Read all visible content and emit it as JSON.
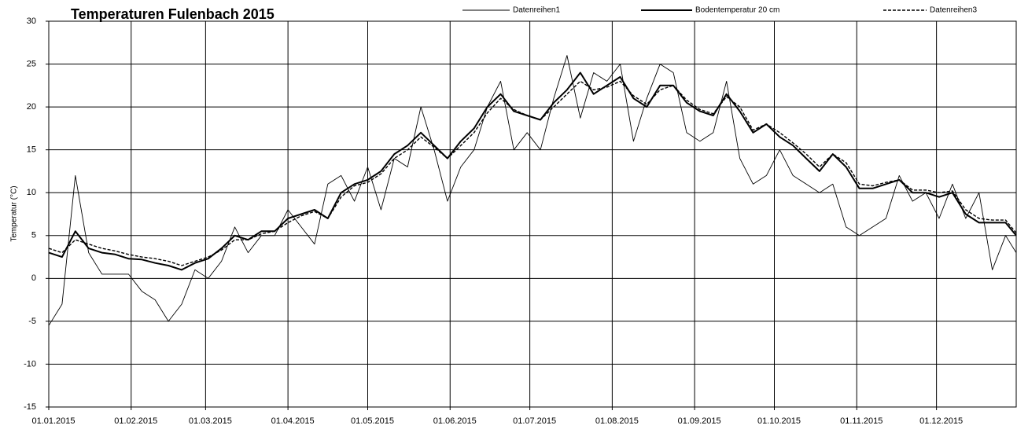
{
  "chart_data": {
    "type": "line",
    "title": "Temperaturen Fulenbach  2015",
    "y_label": "Temperatur (°C)",
    "x": [
      "2015-01-01",
      "2015-01-06",
      "2015-01-11",
      "2015-01-16",
      "2015-01-21",
      "2015-01-26",
      "2015-01-31",
      "2015-02-05",
      "2015-02-10",
      "2015-02-15",
      "2015-02-20",
      "2015-02-25",
      "2015-03-02",
      "2015-03-07",
      "2015-03-12",
      "2015-03-17",
      "2015-03-22",
      "2015-03-27",
      "2015-04-01",
      "2015-04-06",
      "2015-04-11",
      "2015-04-16",
      "2015-04-21",
      "2015-04-26",
      "2015-05-01",
      "2015-05-06",
      "2015-05-11",
      "2015-05-16",
      "2015-05-21",
      "2015-05-26",
      "2015-05-31",
      "2015-06-05",
      "2015-06-10",
      "2015-06-15",
      "2015-06-20",
      "2015-06-25",
      "2015-06-30",
      "2015-07-05",
      "2015-07-10",
      "2015-07-15",
      "2015-07-20",
      "2015-07-25",
      "2015-07-30",
      "2015-08-04",
      "2015-08-09",
      "2015-08-14",
      "2015-08-19",
      "2015-08-24",
      "2015-08-29",
      "2015-09-03",
      "2015-09-08",
      "2015-09-13",
      "2015-09-18",
      "2015-09-23",
      "2015-09-28",
      "2015-10-03",
      "2015-10-08",
      "2015-10-13",
      "2015-10-18",
      "2015-10-23",
      "2015-10-28",
      "2015-11-02",
      "2015-11-07",
      "2015-11-12",
      "2015-11-17",
      "2015-11-22",
      "2015-11-27",
      "2015-12-02",
      "2015-12-07",
      "2015-12-12",
      "2015-12-17",
      "2015-12-22",
      "2015-12-27",
      "2015-12-31"
    ],
    "series": [
      {
        "name": "Datenreihen1",
        "color": "#000000",
        "line_width": 0.9,
        "line_style": "solid",
        "values": [
          -5.5,
          -3,
          12,
          3,
          0.5,
          0.5,
          0.5,
          -1.5,
          -2.5,
          -5,
          -3,
          1,
          0,
          2,
          6,
          3,
          5,
          5,
          8,
          6,
          4,
          11,
          12,
          9,
          13,
          8,
          14,
          13,
          20,
          15,
          9,
          13,
          15,
          20,
          23,
          15,
          17,
          15,
          21,
          26,
          18.7,
          24,
          23,
          25,
          16,
          21,
          25,
          24,
          17,
          16,
          17,
          23,
          14,
          11,
          12,
          15,
          12,
          11,
          10,
          11,
          6,
          5,
          6,
          7,
          12,
          9,
          10,
          7,
          11,
          7,
          10,
          1,
          5,
          3
        ]
      },
      {
        "name": "Bodentemperatur 20 cm",
        "color": "#000000",
        "line_width": 2,
        "line_style": "solid",
        "values": [
          3,
          2.5,
          5.5,
          3.5,
          3,
          2.8,
          2.3,
          2.2,
          1.8,
          1.5,
          1,
          1.8,
          2.3,
          3.5,
          5,
          4.5,
          5.5,
          5.5,
          7,
          7.5,
          8,
          7,
          10,
          11,
          11.5,
          12.5,
          14.5,
          15.5,
          17,
          15.5,
          14,
          16,
          17.5,
          20,
          21.5,
          19.5,
          19,
          18.5,
          20.5,
          22,
          24,
          21.5,
          22.5,
          23.5,
          21,
          20,
          22.5,
          22.5,
          20.5,
          19.5,
          19,
          21.5,
          19.5,
          17,
          18,
          16.5,
          15.5,
          14,
          12.5,
          14.5,
          13,
          10.5,
          10.5,
          11,
          11.5,
          10,
          10,
          9.5,
          10,
          7.5,
          6.5,
          6.5,
          6.5,
          5
        ]
      },
      {
        "name": "Datenreihen3",
        "color": "#000000",
        "line_width": 1.4,
        "line_style": "dashed",
        "values": [
          3.5,
          3,
          4.5,
          4,
          3.5,
          3.2,
          2.8,
          2.5,
          2.3,
          2,
          1.5,
          2,
          2.5,
          3.3,
          4.5,
          4.5,
          5.2,
          5.5,
          6.5,
          7.3,
          7.8,
          7,
          9.5,
          10.8,
          11.2,
          12.2,
          14,
          15,
          16.5,
          15.3,
          14,
          15.5,
          17,
          19.3,
          21,
          19.7,
          19,
          18.5,
          20,
          21.5,
          23,
          22,
          22.3,
          23,
          21.3,
          20.3,
          22,
          22.5,
          20.8,
          19.7,
          19.2,
          21.2,
          20,
          17.3,
          18,
          17,
          15.8,
          14.5,
          13,
          14.5,
          13.5,
          11,
          10.8,
          11.2,
          11.5,
          10.3,
          10.3,
          10,
          10.2,
          8,
          7,
          6.8,
          6.8,
          5.3
        ]
      }
    ],
    "xlim": [
      "2015-01-01",
      "2015-12-31"
    ],
    "xticks": [
      {
        "value": "2015-01-01",
        "label": "01.01.2015"
      },
      {
        "value": "2015-02-01",
        "label": "01.02.2015"
      },
      {
        "value": "2015-03-01",
        "label": "01.03.2015"
      },
      {
        "value": "2015-04-01",
        "label": "01.04.2015"
      },
      {
        "value": "2015-05-01",
        "label": "01.05.2015"
      },
      {
        "value": "2015-06-01",
        "label": "01.06.2015"
      },
      {
        "value": "2015-07-01",
        "label": "01.07.2015"
      },
      {
        "value": "2015-08-01",
        "label": "01.08.2015"
      },
      {
        "value": "2015-09-01",
        "label": "01.09.2015"
      },
      {
        "value": "2015-10-01",
        "label": "01.10.2015"
      },
      {
        "value": "2015-11-01",
        "label": "01.11.2015"
      },
      {
        "value": "2015-12-01",
        "label": "01.12.2015"
      }
    ],
    "ylim": [
      -15,
      30
    ],
    "yticks": [
      -15,
      -10,
      -5,
      0,
      5,
      10,
      15,
      20,
      25,
      30
    ],
    "grid": true,
    "legend": "top"
  }
}
